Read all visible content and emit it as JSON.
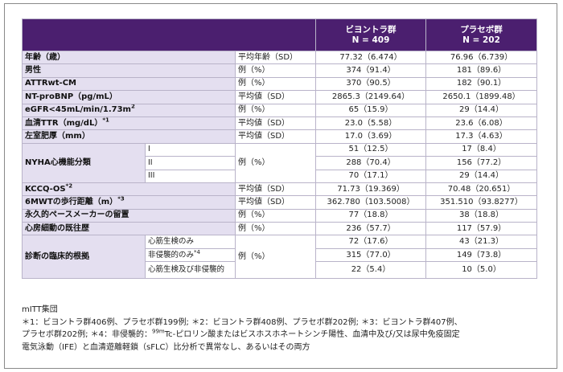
{
  "header": {
    "group1_name": "ビヨントラ群",
    "group1_n": "N = 409",
    "group2_name": "プラセボ群",
    "group2_n": "N = 202"
  },
  "rows": {
    "age": {
      "label": "年齢（歳）",
      "stat": "平均年齢（SD）",
      "g1": "77.32（6.474）",
      "g2": "76.96（6.739）"
    },
    "male": {
      "label": "男性",
      "stat": "例（%）",
      "g1": "374（91.4）",
      "g2": "181（89.6）"
    },
    "attr": {
      "label": "ATTRwt-CM",
      "stat": "例（%）",
      "g1": "370（90.5）",
      "g2": "182（90.1）"
    },
    "ntprobnp": {
      "label": "NT-proBNP（pg/mL）",
      "stat": "平均値（SD）",
      "g1": "2865.3（2149.64）",
      "g2": "2650.1（1899.48）"
    },
    "egfr": {
      "label": "eGFR<45mL/min/1.73m",
      "label_sup": "2",
      "stat": "例（%）",
      "g1": "65（15.9）",
      "g2": "29（14.4）"
    },
    "ttr": {
      "label": "血清TTR（mg/dL）",
      "label_sup": "*1",
      "stat": "平均値（SD）",
      "g1": "23.0（5.58）",
      "g2": "23.6（6.08）"
    },
    "lvh": {
      "label": "左室肥厚（mm）",
      "stat": "平均値（SD）",
      "g1": "17.0（3.69）",
      "g2": "17.3（4.63）"
    },
    "nyha": {
      "label": "NYHA心機能分類",
      "stat": "例（%）",
      "items": [
        {
          "sub": "I",
          "g1": "51（12.5）",
          "g2": "17（8.4）"
        },
        {
          "sub": "II",
          "g1": "288（70.4）",
          "g2": "156（77.2）"
        },
        {
          "sub": "III",
          "g1": "70（17.1）",
          "g2": "29（14.4）"
        }
      ]
    },
    "kccq": {
      "label": "KCCQ-OS",
      "label_sup": "*2",
      "stat": "平均値（SD）",
      "g1": "71.73（19.369）",
      "g2": "70.48（20.651）"
    },
    "walk": {
      "label": "6MWTの歩行距離（m）",
      "label_sup": "*3",
      "stat": "平均値（SD）",
      "g1": "362.780（103.5008）",
      "g2": "351.510（93.8277）"
    },
    "pacemaker": {
      "label": "永久的ペースメーカーの留置",
      "stat": "例（%）",
      "g1": "77（18.8）",
      "g2": "38（18.8）"
    },
    "afib": {
      "label": "心房細動の既往歴",
      "stat": "例（%）",
      "g1": "236（57.7）",
      "g2": "117（57.9）"
    },
    "diag": {
      "label": "診断の臨床的根拠",
      "stat": "例（%）",
      "items": [
        {
          "sub": "心筋生検のみ",
          "g1": "72（17.6）",
          "g2": "43（21.3）"
        },
        {
          "sub": "非侵襲的のみ",
          "sub_sup": "*4",
          "g1": "315（77.0）",
          "g2": "149（73.8）"
        },
        {
          "sub": "心筋生検及び非侵襲的",
          "g1": "22（5.4）",
          "g2": "10（5.0）"
        }
      ]
    }
  },
  "notes": {
    "line1": "mITT集団",
    "line2": "＊1：ビヨントラ群406例、プラセボ群199例; ＊2：ビヨントラ群408例、プラセボ群202例; ＊3：ビヨントラ群407例、",
    "line3_a": "プラセボ群202例; ＊4：非侵襲的：",
    "line3_sup": "99m",
    "line3_b": "Tc-ピロリン酸またはビスホスホネートシンチ陽性、血清中及び/又は尿中免疫固定",
    "line4": "電気泳動（IFE）と血清遊離軽鎖（sFLC）比分析で異常なし、あるいはその両方"
  }
}
